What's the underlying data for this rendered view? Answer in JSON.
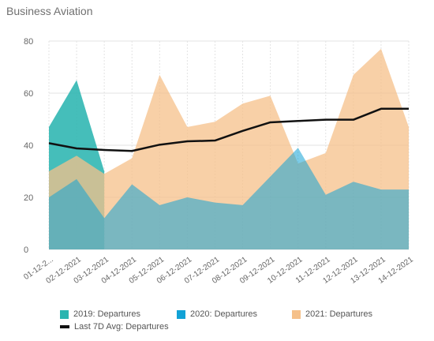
{
  "title": "Business Aviation",
  "colors": {
    "s2019": "#2bb5b0",
    "s2020": "#12a2d6",
    "s2021": "#f5c089",
    "avg": "#111111",
    "grid": "#e3e3e3",
    "axis_text": "#666666"
  },
  "chart_data": {
    "type": "area",
    "title": "Business Aviation",
    "ylim": [
      0,
      80
    ],
    "yticks": [
      0,
      20,
      40,
      60,
      80
    ],
    "grid": true,
    "legend_position": "bottom",
    "categories": [
      "01-12-2...",
      "02-12-2021",
      "03-12-2021",
      "04-12-2021",
      "05-12-2021",
      "06-12-2021",
      "07-12-2021",
      "08-12-2021",
      "09-12-2021",
      "10-12-2021",
      "11-12-2021",
      "12-12-2021",
      "13-12-2021",
      "14-12-2021"
    ],
    "series": [
      {
        "name": "2019: Departures",
        "type": "area",
        "color_key": "s2019",
        "values": [
          47,
          65,
          30,
          null,
          null,
          null,
          null,
          null,
          null,
          null,
          null,
          null,
          null,
          null
        ]
      },
      {
        "name": "2020: Departures",
        "type": "area",
        "color_key": "s2020",
        "values": [
          20,
          27,
          12,
          25,
          17,
          20,
          18,
          17,
          28,
          39,
          21,
          26,
          23,
          23
        ]
      },
      {
        "name": "2021: Departures",
        "type": "area",
        "color_key": "s2021",
        "values": [
          30,
          36,
          29,
          35,
          67,
          47,
          49,
          56,
          59,
          33,
          37,
          67,
          77,
          47
        ]
      },
      {
        "name": "Last 7D Avg: Departures",
        "type": "line",
        "color_key": "avg",
        "values": [
          40.8,
          38.8,
          38.2,
          37.8,
          40.2,
          41.5,
          41.8,
          45.5,
          48.8,
          49.3,
          49.8,
          49.8,
          54,
          54
        ]
      }
    ]
  },
  "legend": [
    {
      "label": "2019: Departures",
      "color_key": "s2019",
      "kind": "box"
    },
    {
      "label": "2020: Departures",
      "color_key": "s2020",
      "kind": "box"
    },
    {
      "label": "2021: Departures",
      "color_key": "s2021",
      "kind": "box"
    },
    {
      "label": "Last 7D Avg: Departures",
      "color_key": "avg",
      "kind": "line"
    }
  ]
}
